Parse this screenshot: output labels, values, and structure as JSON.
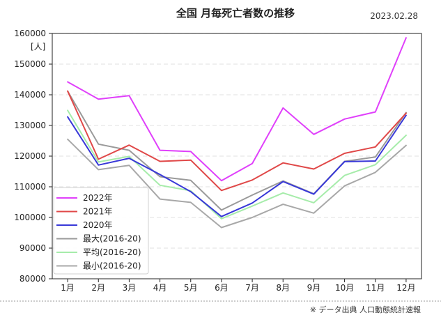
{
  "chart_data": {
    "type": "line",
    "title": "全国 月毎死亡者数の推移",
    "date": "2023.02.28",
    "ylabel": "[人]",
    "xlabel": "",
    "categories": [
      "1月",
      "2月",
      "3月",
      "4月",
      "5月",
      "6月",
      "7月",
      "8月",
      "9月",
      "10月",
      "11月",
      "12月"
    ],
    "ylim": [
      80000,
      160000
    ],
    "yticks": [
      80000,
      90000,
      100000,
      110000,
      120000,
      130000,
      140000,
      150000,
      160000
    ],
    "ytick_labels": [
      "80000",
      "90000",
      "100000",
      "110000",
      "120000",
      "130000",
      "140000",
      "150000",
      "160000"
    ],
    "grid": "y-dashed",
    "legend_position": "bottom-left",
    "series": [
      {
        "name": "2022年",
        "color": "#e040fb",
        "values": [
          144200,
          138600,
          139700,
          121900,
          121500,
          112000,
          117600,
          135700,
          127100,
          132100,
          134400,
          158600
        ]
      },
      {
        "name": "2021年",
        "color": "#e04848",
        "values": [
          141200,
          119000,
          123600,
          118300,
          118700,
          108800,
          112200,
          117800,
          115800,
          120900,
          123000,
          134000
        ]
      },
      {
        "name": "2020年",
        "color": "#3838d8",
        "values": [
          132800,
          117100,
          119300,
          114000,
          108400,
          100300,
          104700,
          111700,
          107600,
          118200,
          118400,
          133300
        ]
      },
      {
        "name": "最大(2016-20)",
        "color": "#9a9a9a",
        "values": [
          141200,
          123900,
          121900,
          113300,
          112100,
          102400,
          107300,
          111900,
          107700,
          118300,
          119700,
          134200
        ]
      },
      {
        "name": "平均(2016-20)",
        "color": "#a6ecaa",
        "values": [
          134900,
          118100,
          119900,
          110500,
          108700,
          99600,
          103700,
          108000,
          104800,
          113700,
          117200,
          126800
        ]
      },
      {
        "name": "最小(2016-20)",
        "color": "#a8a8a8",
        "values": [
          125500,
          115600,
          117000,
          106000,
          104900,
          96700,
          100000,
          104300,
          101400,
          110300,
          114700,
          123500
        ]
      }
    ]
  },
  "footer_note": "※ データ出典 人口動態統計速報"
}
